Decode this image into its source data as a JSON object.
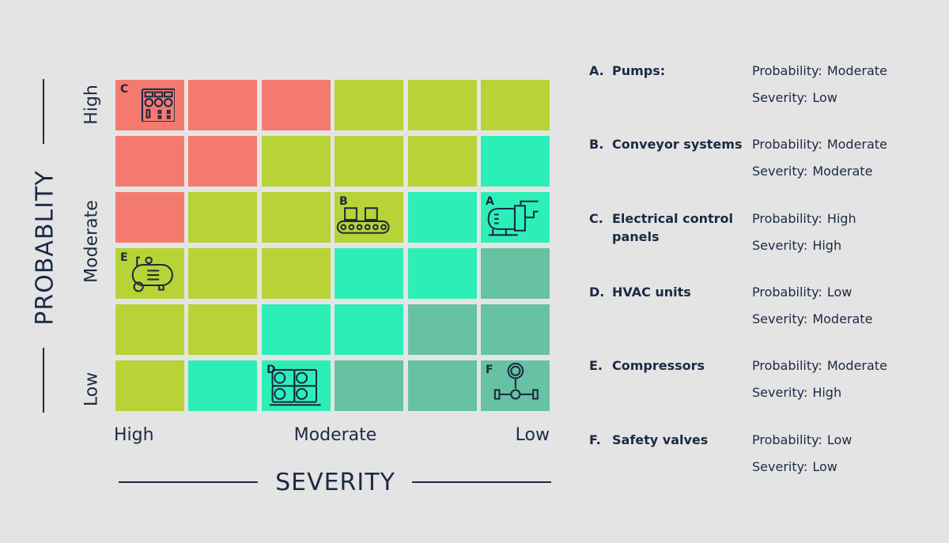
{
  "y_axis": {
    "title": "PROBABLITY",
    "labels": [
      "High",
      "Moderate",
      "Low"
    ]
  },
  "x_axis": {
    "title": "SEVERITY",
    "labels": [
      "High",
      "Moderate",
      "Low"
    ]
  },
  "colors": {
    "red": "#F47A70",
    "lime": "#B7D335",
    "cyan": "#2CEFB8",
    "teal": "#66C2A3",
    "ink": "#1B2A44",
    "background": "#E4E4E4"
  },
  "grid": [
    [
      "red",
      "red",
      "red",
      "lime",
      "lime",
      "lime"
    ],
    [
      "red",
      "red",
      "lime",
      "lime",
      "lime",
      "cyan"
    ],
    [
      "red",
      "lime",
      "lime",
      "lime",
      "cyan",
      "cyan"
    ],
    [
      "lime",
      "lime",
      "lime",
      "cyan",
      "cyan",
      "teal"
    ],
    [
      "lime",
      "lime",
      "cyan",
      "cyan",
      "teal",
      "teal"
    ],
    [
      "lime",
      "cyan",
      "cyan",
      "teal",
      "teal",
      "teal"
    ]
  ],
  "markers": [
    {
      "letter": "C",
      "row": 0,
      "col": 0,
      "icon": "control-panel-icon"
    },
    {
      "letter": "B",
      "row": 2,
      "col": 3,
      "icon": "conveyor-icon"
    },
    {
      "letter": "A",
      "row": 2,
      "col": 5,
      "icon": "pump-icon"
    },
    {
      "letter": "E",
      "row": 3,
      "col": 0,
      "icon": "compressor-icon"
    },
    {
      "letter": "D",
      "row": 5,
      "col": 2,
      "icon": "hvac-icon"
    },
    {
      "letter": "F",
      "row": 5,
      "col": 5,
      "icon": "valve-icon"
    }
  ],
  "legend": [
    {
      "letter": "A.",
      "name": "Pumps:",
      "prob_label": "Probability:",
      "prob": "Moderate",
      "sev_label": "Severity:",
      "sev": "Low"
    },
    {
      "letter": "B.",
      "name": "Conveyor systems",
      "prob_label": "Probability:",
      "prob": "Moderate",
      "sev_label": "Severity:",
      "sev": "Moderate"
    },
    {
      "letter": "C.",
      "name": "Electrical control panels",
      "prob_label": "Probability:",
      "prob": "High",
      "sev_label": "Severity:",
      "sev": "High"
    },
    {
      "letter": "D.",
      "name": "HVAC units",
      "prob_label": "Probability:",
      "prob": "Low",
      "sev_label": "Severity:",
      "sev": "Moderate"
    },
    {
      "letter": "E.",
      "name": "Compressors",
      "prob_label": "Probability:",
      "prob": "Moderate",
      "sev_label": "Severity:",
      "sev": "High"
    },
    {
      "letter": "F.",
      "name": "Safety valves",
      "prob_label": "Probability:",
      "prob": "Low",
      "sev_label": "Severity:",
      "sev": "Low"
    }
  ]
}
